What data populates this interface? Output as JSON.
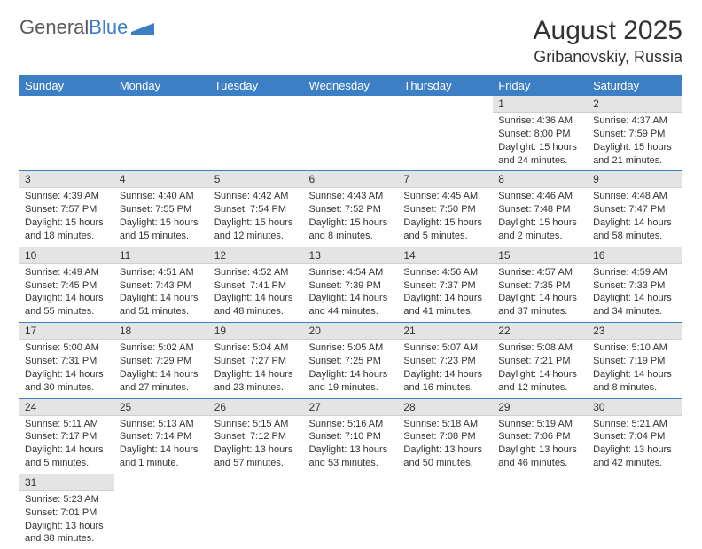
{
  "logo": {
    "text1": "General",
    "text2": "Blue",
    "brand_color": "#3d7fc4"
  },
  "title": "August 2025",
  "location": "Gribanovskiy, Russia",
  "colors": {
    "header_bg": "#3d7fc4",
    "header_text": "#ffffff",
    "daynum_bg": "#e4e4e4",
    "cell_border": "#3d7fc4",
    "text": "#333333",
    "background": "#ffffff"
  },
  "fonts": {
    "title_size": 30,
    "location_size": 18,
    "dayheader_size": 13,
    "daynum_size": 12,
    "body_size": 11
  },
  "day_headers": [
    "Sunday",
    "Monday",
    "Tuesday",
    "Wednesday",
    "Thursday",
    "Friday",
    "Saturday"
  ],
  "weeks": [
    [
      null,
      null,
      null,
      null,
      null,
      {
        "n": "1",
        "sr": "Sunrise: 4:36 AM",
        "ss": "Sunset: 8:00 PM",
        "d1": "Daylight: 15 hours",
        "d2": "and 24 minutes."
      },
      {
        "n": "2",
        "sr": "Sunrise: 4:37 AM",
        "ss": "Sunset: 7:59 PM",
        "d1": "Daylight: 15 hours",
        "d2": "and 21 minutes."
      }
    ],
    [
      {
        "n": "3",
        "sr": "Sunrise: 4:39 AM",
        "ss": "Sunset: 7:57 PM",
        "d1": "Daylight: 15 hours",
        "d2": "and 18 minutes."
      },
      {
        "n": "4",
        "sr": "Sunrise: 4:40 AM",
        "ss": "Sunset: 7:55 PM",
        "d1": "Daylight: 15 hours",
        "d2": "and 15 minutes."
      },
      {
        "n": "5",
        "sr": "Sunrise: 4:42 AM",
        "ss": "Sunset: 7:54 PM",
        "d1": "Daylight: 15 hours",
        "d2": "and 12 minutes."
      },
      {
        "n": "6",
        "sr": "Sunrise: 4:43 AM",
        "ss": "Sunset: 7:52 PM",
        "d1": "Daylight: 15 hours",
        "d2": "and 8 minutes."
      },
      {
        "n": "7",
        "sr": "Sunrise: 4:45 AM",
        "ss": "Sunset: 7:50 PM",
        "d1": "Daylight: 15 hours",
        "d2": "and 5 minutes."
      },
      {
        "n": "8",
        "sr": "Sunrise: 4:46 AM",
        "ss": "Sunset: 7:48 PM",
        "d1": "Daylight: 15 hours",
        "d2": "and 2 minutes."
      },
      {
        "n": "9",
        "sr": "Sunrise: 4:48 AM",
        "ss": "Sunset: 7:47 PM",
        "d1": "Daylight: 14 hours",
        "d2": "and 58 minutes."
      }
    ],
    [
      {
        "n": "10",
        "sr": "Sunrise: 4:49 AM",
        "ss": "Sunset: 7:45 PM",
        "d1": "Daylight: 14 hours",
        "d2": "and 55 minutes."
      },
      {
        "n": "11",
        "sr": "Sunrise: 4:51 AM",
        "ss": "Sunset: 7:43 PM",
        "d1": "Daylight: 14 hours",
        "d2": "and 51 minutes."
      },
      {
        "n": "12",
        "sr": "Sunrise: 4:52 AM",
        "ss": "Sunset: 7:41 PM",
        "d1": "Daylight: 14 hours",
        "d2": "and 48 minutes."
      },
      {
        "n": "13",
        "sr": "Sunrise: 4:54 AM",
        "ss": "Sunset: 7:39 PM",
        "d1": "Daylight: 14 hours",
        "d2": "and 44 minutes."
      },
      {
        "n": "14",
        "sr": "Sunrise: 4:56 AM",
        "ss": "Sunset: 7:37 PM",
        "d1": "Daylight: 14 hours",
        "d2": "and 41 minutes."
      },
      {
        "n": "15",
        "sr": "Sunrise: 4:57 AM",
        "ss": "Sunset: 7:35 PM",
        "d1": "Daylight: 14 hours",
        "d2": "and 37 minutes."
      },
      {
        "n": "16",
        "sr": "Sunrise: 4:59 AM",
        "ss": "Sunset: 7:33 PM",
        "d1": "Daylight: 14 hours",
        "d2": "and 34 minutes."
      }
    ],
    [
      {
        "n": "17",
        "sr": "Sunrise: 5:00 AM",
        "ss": "Sunset: 7:31 PM",
        "d1": "Daylight: 14 hours",
        "d2": "and 30 minutes."
      },
      {
        "n": "18",
        "sr": "Sunrise: 5:02 AM",
        "ss": "Sunset: 7:29 PM",
        "d1": "Daylight: 14 hours",
        "d2": "and 27 minutes."
      },
      {
        "n": "19",
        "sr": "Sunrise: 5:04 AM",
        "ss": "Sunset: 7:27 PM",
        "d1": "Daylight: 14 hours",
        "d2": "and 23 minutes."
      },
      {
        "n": "20",
        "sr": "Sunrise: 5:05 AM",
        "ss": "Sunset: 7:25 PM",
        "d1": "Daylight: 14 hours",
        "d2": "and 19 minutes."
      },
      {
        "n": "21",
        "sr": "Sunrise: 5:07 AM",
        "ss": "Sunset: 7:23 PM",
        "d1": "Daylight: 14 hours",
        "d2": "and 16 minutes."
      },
      {
        "n": "22",
        "sr": "Sunrise: 5:08 AM",
        "ss": "Sunset: 7:21 PM",
        "d1": "Daylight: 14 hours",
        "d2": "and 12 minutes."
      },
      {
        "n": "23",
        "sr": "Sunrise: 5:10 AM",
        "ss": "Sunset: 7:19 PM",
        "d1": "Daylight: 14 hours",
        "d2": "and 8 minutes."
      }
    ],
    [
      {
        "n": "24",
        "sr": "Sunrise: 5:11 AM",
        "ss": "Sunset: 7:17 PM",
        "d1": "Daylight: 14 hours",
        "d2": "and 5 minutes."
      },
      {
        "n": "25",
        "sr": "Sunrise: 5:13 AM",
        "ss": "Sunset: 7:14 PM",
        "d1": "Daylight: 14 hours",
        "d2": "and 1 minute."
      },
      {
        "n": "26",
        "sr": "Sunrise: 5:15 AM",
        "ss": "Sunset: 7:12 PM",
        "d1": "Daylight: 13 hours",
        "d2": "and 57 minutes."
      },
      {
        "n": "27",
        "sr": "Sunrise: 5:16 AM",
        "ss": "Sunset: 7:10 PM",
        "d1": "Daylight: 13 hours",
        "d2": "and 53 minutes."
      },
      {
        "n": "28",
        "sr": "Sunrise: 5:18 AM",
        "ss": "Sunset: 7:08 PM",
        "d1": "Daylight: 13 hours",
        "d2": "and 50 minutes."
      },
      {
        "n": "29",
        "sr": "Sunrise: 5:19 AM",
        "ss": "Sunset: 7:06 PM",
        "d1": "Daylight: 13 hours",
        "d2": "and 46 minutes."
      },
      {
        "n": "30",
        "sr": "Sunrise: 5:21 AM",
        "ss": "Sunset: 7:04 PM",
        "d1": "Daylight: 13 hours",
        "d2": "and 42 minutes."
      }
    ],
    [
      {
        "n": "31",
        "sr": "Sunrise: 5:23 AM",
        "ss": "Sunset: 7:01 PM",
        "d1": "Daylight: 13 hours",
        "d2": "and 38 minutes."
      },
      null,
      null,
      null,
      null,
      null,
      null
    ]
  ]
}
